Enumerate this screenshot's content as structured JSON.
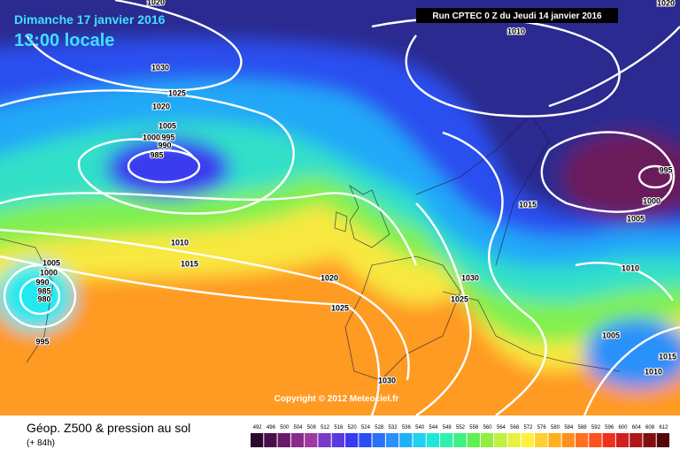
{
  "header": {
    "date": "Dimanche 17 janvier 2016",
    "time": "13:00 locale",
    "run": "Run CPTEC 0 Z du Jeudi 14 janvier 2016"
  },
  "isobars": [
    "1020",
    "1030",
    "1025",
    "1020",
    "1005",
    "1000",
    "995",
    "990",
    "985",
    "1010",
    "1015",
    "1020",
    "1025",
    "1030",
    "1030",
    "1025",
    "1015",
    "1005",
    "1000",
    "995",
    "1010",
    "1005",
    "1015",
    "1010",
    "1010",
    "1020",
    "1005",
    "1000",
    "990",
    "985",
    "980",
    "995"
  ],
  "copyright": "Copyright © 2012 Meteociel.fr",
  "footer": {
    "title": "Géop. Z500 & pression au sol",
    "lead": "(+ 84h)"
  },
  "colorbar": {
    "labels": [
      492,
      496,
      500,
      504,
      508,
      512,
      516,
      520,
      524,
      528,
      532,
      536,
      540,
      544,
      548,
      552,
      556,
      560,
      564,
      568,
      572,
      576,
      580,
      584,
      588,
      592,
      596,
      600,
      604,
      608,
      612
    ],
    "colors": [
      "#2a0a2a",
      "#4a0f4a",
      "#6a1a6a",
      "#8a2a8a",
      "#a03aa0",
      "#7a3ac8",
      "#5a3ae0",
      "#3a3af0",
      "#2a50f5",
      "#2a70f8",
      "#2a90fa",
      "#20b0f8",
      "#20d0f0",
      "#20e8d8",
      "#30f0b0",
      "#40f080",
      "#60f050",
      "#90f040",
      "#c0f040",
      "#e8f040",
      "#fff040",
      "#ffd030",
      "#ffb020",
      "#ff9020",
      "#ff7020",
      "#ff5020",
      "#f03020",
      "#d02020",
      "#b01818",
      "#801010",
      "#500808"
    ]
  }
}
